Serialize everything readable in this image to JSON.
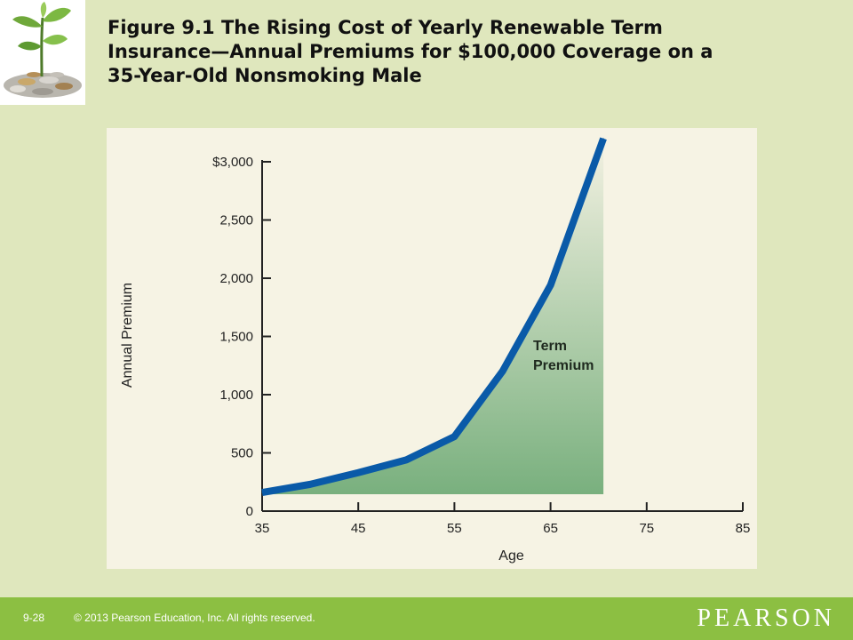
{
  "slide": {
    "title_lines": [
      "Figure 9.1  The Rising Cost of Yearly Renewable Term",
      "Insurance—Annual Premiums for $100,000 Coverage on a",
      "35-Year-Old Nonsmoking Male"
    ],
    "logo_icon": "plant-coins-icon",
    "slide_number": "9-28",
    "copyright": "© 2013 Pearson Education, Inc. All rights reserved.",
    "brand": "PEARSON",
    "colors": {
      "background": "#dfe7bd",
      "footer": "#8cbf42",
      "line": "#0a5aa8",
      "fill_top": "#f3f1e2",
      "fill_bottom": "#79b07e"
    }
  },
  "chart_data": {
    "type": "area",
    "x": [
      35,
      40,
      45,
      50,
      55,
      60,
      65,
      70.5
    ],
    "values": [
      160,
      230,
      330,
      440,
      640,
      1200,
      1940,
      3200
    ],
    "xlabel": "Age",
    "ylabel": "Annual Premium",
    "xlim": [
      35,
      85
    ],
    "ylim": [
      0,
      3000
    ],
    "xticks": [
      35,
      45,
      55,
      65,
      75,
      85
    ],
    "xtick_labels": [
      "35",
      "45",
      "55",
      "65",
      "75",
      "85"
    ],
    "yticks": [
      0,
      500,
      1000,
      1500,
      2000,
      2500,
      3000
    ],
    "ytick_labels": [
      "0",
      "500",
      "1,000",
      "1,500",
      "2,000",
      "2,500",
      "$3,000"
    ],
    "annotation": [
      "Term",
      "Premium"
    ],
    "grid": false,
    "legend": "none"
  }
}
